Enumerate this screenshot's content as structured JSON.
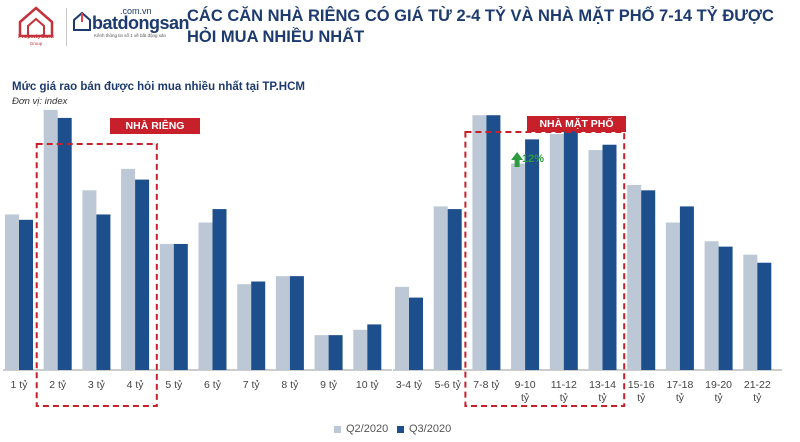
{
  "header": {
    "title": "CÁC CĂN NHÀ RIÊNG CÓ GIÁ TỪ 2-4 TỶ VÀ NHÀ MẶT PHỐ 7-14 TỶ ĐƯỢC HỎI MUA NHIỀU NHẤT",
    "logo_propertyguru": "PropertyGuru",
    "logo_propertyguru_sub": "Group",
    "logo_bds_domain": ".com.vn",
    "logo_bds_name": "batdongsan",
    "logo_bds_slogan": "Kênh thông tin số 1 về bất động sản"
  },
  "subtitle": "Mức giá rao bán được hỏi mua nhiều nhất tại TP.HCM",
  "unit": "Đơn vị: index",
  "colors": {
    "q2": "#bcc8d6",
    "q3": "#1d4f8c",
    "highlight": "#c8202b",
    "growth": "#2e9b3e",
    "title": "#1d3b6e"
  },
  "chart_data": [
    {
      "type": "bar",
      "title": "NHÀ RIÊNG",
      "categories": [
        "1 tỷ",
        "2 tỷ",
        "3 tỷ",
        "4 tỷ",
        "5 tỷ",
        "6 tỷ",
        "7 tỷ",
        "8 tỷ",
        "9 tỷ",
        "10 tỷ"
      ],
      "series": [
        {
          "name": "Q2/2020",
          "values": [
            58,
            97,
            67,
            75,
            47,
            55,
            32,
            35,
            13,
            15
          ]
        },
        {
          "name": "Q3/2020",
          "values": [
            56,
            94,
            58,
            71,
            47,
            60,
            33,
            35,
            13,
            17
          ]
        }
      ],
      "ylim": [
        0,
        110
      ],
      "highlight_range": [
        1,
        3
      ]
    },
    {
      "type": "bar",
      "title": "NHÀ MẶT PHỐ",
      "categories": [
        "3-4 tỷ",
        "5-6 tỷ",
        "7-8 tỷ",
        "9-10 tỷ",
        "11-12 tỷ",
        "13-14 tỷ",
        "15-16 tỷ",
        "17-18 tỷ",
        "19-20 tỷ",
        "21-22 tỷ"
      ],
      "series": [
        {
          "name": "Q2/2020",
          "values": [
            31,
            61,
            95,
            77,
            88,
            82,
            69,
            55,
            48,
            43
          ]
        },
        {
          "name": "Q3/2020",
          "values": [
            27,
            60,
            95,
            86,
            89,
            84,
            67,
            61,
            46,
            40
          ]
        }
      ],
      "ylim": [
        0,
        110
      ],
      "highlight_range": [
        2,
        5
      ],
      "annotation": {
        "category_index": 3,
        "text": "12%"
      }
    }
  ],
  "legend": [
    "Q2/2020",
    "Q3/2020"
  ]
}
